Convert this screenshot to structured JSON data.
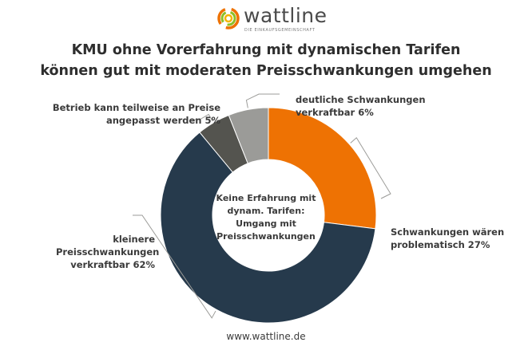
{
  "brand": {
    "name": "wattline",
    "tagline": "DIE EINKAUFSGEMEINSCHAFT"
  },
  "chart_data": {
    "type": "pie",
    "variant": "donut",
    "title_lines": [
      "KMU ohne Vorerfahrung mit dynamischen Tarifen",
      "können gut mit moderaten Preisschwankungen umgehen"
    ],
    "center_label": [
      "Keine Erfahrung mit",
      "dynam. Tarifen:",
      "Umgang mit",
      "Preisschwankungen"
    ],
    "slices": [
      {
        "label": "Schwankungen wären problematisch",
        "label_lines": [
          "Schwankungen wären",
          "problematisch 27%"
        ],
        "value": 27,
        "color": "#ee7203"
      },
      {
        "label": "kleinere Preisschwankungen verkraftbar",
        "label_lines": [
          "kleinere",
          "Preisschwankungen",
          "verkraftbar 62%"
        ],
        "value": 62,
        "color": "#263a4c"
      },
      {
        "label": "Betrieb kann teilweise an Preise angepasst werden",
        "label_lines": [
          "Betrieb kann teilweise an Preise",
          "angepasst werden 5%"
        ],
        "value": 5,
        "color": "#54544f"
      },
      {
        "label": "deutliche Schwankungen verkraftbar",
        "label_lines": [
          "deutliche Schwankungen",
          "verkraftbar 6%"
        ],
        "value": 6,
        "color": "#9b9b98"
      }
    ]
  },
  "footer": "www.wattline.de"
}
